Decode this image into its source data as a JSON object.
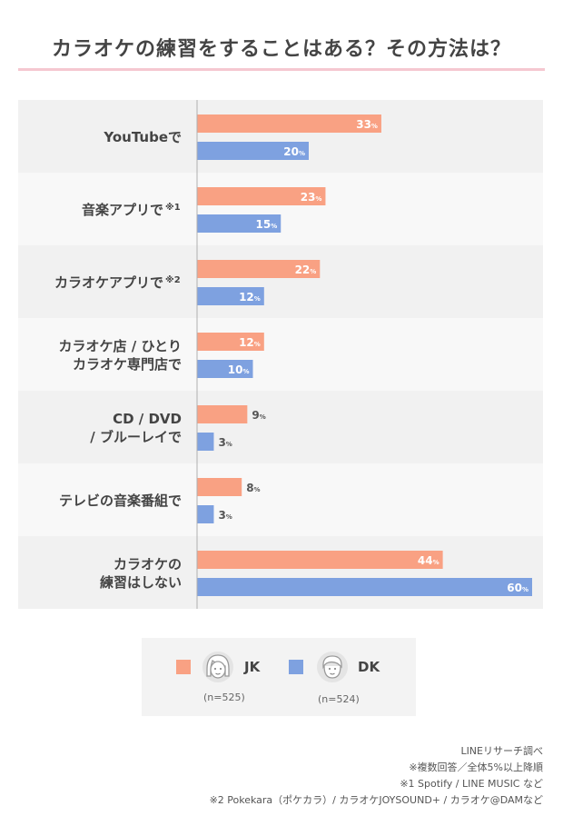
{
  "title": "カラオケの練習をすることはある？その方法は？",
  "chart_data": {
    "type": "bar",
    "orientation": "horizontal",
    "categories": [
      [
        "YouTubeで"
      ],
      [
        "音楽アプリで",
        "※1"
      ],
      [
        "カラオケアプリで",
        "※2"
      ],
      [
        "カラオケ店 / ひとり",
        "カラオケ専門店で"
      ],
      [
        "CD / DVD",
        "/ ブルーレイで"
      ],
      [
        "テレビの音楽番組で"
      ],
      [
        "カラオケの",
        "練習はしない"
      ]
    ],
    "series": [
      {
        "name": "JK",
        "values": [
          33,
          23,
          22,
          12,
          9,
          8,
          44
        ],
        "color": "#f9a183"
      },
      {
        "name": "DK",
        "values": [
          20,
          15,
          12,
          10,
          3,
          3,
          60
        ],
        "color": "#7ea1e0"
      }
    ],
    "value_suffix": "%",
    "xlim": [
      0,
      60
    ],
    "grid": false
  },
  "legend": {
    "items": [
      {
        "label": "JK",
        "n": "(n=525)",
        "icon": "girl-face-icon",
        "color": "#f9a183"
      },
      {
        "label": "DK",
        "n": "(n=524)",
        "icon": "boy-face-icon",
        "color": "#7ea1e0"
      }
    ]
  },
  "notes": [
    "LINEリサーチ調べ",
    "※複数回答／全体5%以上降順",
    "※1 Spotify / LINE MUSIC など",
    "※2 Pokekara（ポケカラ）/ カラオケJOYSOUND+ / カラオケ@DAMなど"
  ],
  "colors": {
    "band_dark": "#f1f1f1",
    "band_light": "#f8f8f8",
    "axis": "#b0b0b0",
    "title_rule": "#f5c7d0"
  }
}
